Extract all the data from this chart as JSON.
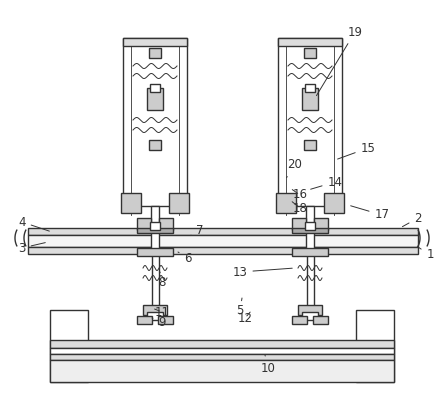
{
  "bg_color": "#ffffff",
  "lc": "#333333",
  "lw": 1.0,
  "tlw": 0.6,
  "fig_w": 4.44,
  "fig_h": 4.09,
  "dpi": 100,
  "labels": [
    [
      "1",
      430,
      255,
      415,
      245
    ],
    [
      "2",
      418,
      218,
      400,
      228
    ],
    [
      "3",
      22,
      248,
      48,
      242
    ],
    [
      "4",
      22,
      222,
      52,
      232
    ],
    [
      "5",
      240,
      310,
      242,
      298
    ],
    [
      "6",
      188,
      258,
      178,
      252
    ],
    [
      "7",
      200,
      230,
      188,
      237
    ],
    [
      "8",
      162,
      282,
      160,
      272
    ],
    [
      "9",
      162,
      322,
      152,
      318
    ],
    [
      "10",
      268,
      368,
      265,
      355
    ],
    [
      "11",
      162,
      312,
      152,
      308
    ],
    [
      "12",
      245,
      318,
      252,
      310
    ],
    [
      "13",
      240,
      272,
      295,
      268
    ],
    [
      "14",
      335,
      182,
      308,
      190
    ],
    [
      "15",
      368,
      148,
      335,
      160
    ],
    [
      "16",
      300,
      195,
      290,
      188
    ],
    [
      "17",
      382,
      215,
      348,
      205
    ],
    [
      "18",
      300,
      208,
      290,
      200
    ],
    [
      "19",
      355,
      32,
      315,
      98
    ],
    [
      "20",
      295,
      165,
      285,
      180
    ]
  ]
}
